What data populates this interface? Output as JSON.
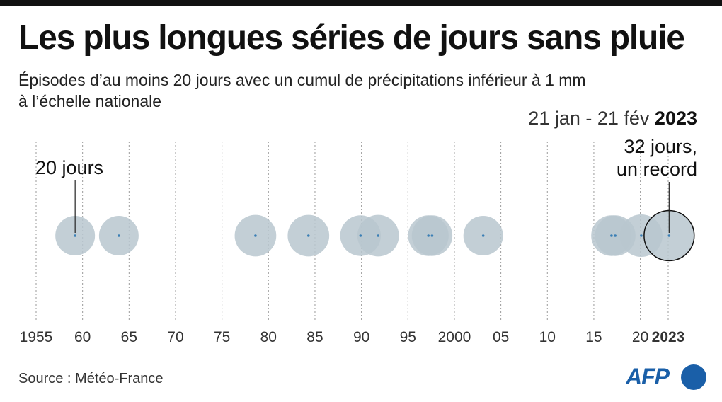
{
  "header": {
    "title": "Les plus longues séries de jours sans pluie",
    "subtitle_line1": "Épisodes d’au moins 20 jours avec un cumul de précipitations inférieur à 1 mm",
    "subtitle_line2": "à l’échelle nationale"
  },
  "footer": {
    "source": "Source : Météo-France",
    "logo_text": "AFP"
  },
  "colors": {
    "bubble_fill": "#b9c7cf",
    "bubble_opacity": 0.85,
    "center_dot": "#3b7fb5",
    "grid": "#9a9a9a",
    "record_outline": "#111111"
  },
  "chart_data": {
    "type": "scatter",
    "x_unit": "year",
    "xlim": [
      1955,
      2023
    ],
    "tick_values": [
      1955,
      1960,
      1965,
      1970,
      1975,
      1980,
      1985,
      1990,
      1995,
      2000,
      2005,
      2010,
      2015,
      2020,
      2023
    ],
    "tick_labels": [
      "1955",
      "60",
      "65",
      "70",
      "75",
      "80",
      "85",
      "90",
      "95",
      "2000",
      "05",
      "10",
      "15",
      "20",
      "2023"
    ],
    "size_encoding": "durée de l'épisode (jours)",
    "episodes": [
      {
        "year": 1959.2,
        "days": 20
      },
      {
        "year": 1963.9,
        "days": 20
      },
      {
        "year": 1978.6,
        "days": 22
      },
      {
        "year": 1984.3,
        "days": 22
      },
      {
        "year": 1989.9,
        "days": 21
      },
      {
        "year": 1991.8,
        "days": 22
      },
      {
        "year": 1997.2,
        "days": 21
      },
      {
        "year": 1997.6,
        "days": 21
      },
      {
        "year": 2003.1,
        "days": 20
      },
      {
        "year": 2016.9,
        "days": 21
      },
      {
        "year": 2017.3,
        "days": 21
      },
      {
        "year": 2020.1,
        "days": 23
      },
      {
        "year": 2023.1,
        "days": 32,
        "record": true
      }
    ],
    "annotations": [
      {
        "lines": [
          "20 jours"
        ],
        "target_year": 1959.2,
        "align": "left"
      },
      {
        "lines": [
          "21 jan - 21 fév",
          "2023"
        ],
        "align": "right"
      },
      {
        "lines": [
          "32 jours,",
          "un record"
        ],
        "target_year": 2023.1,
        "align": "right"
      }
    ]
  }
}
